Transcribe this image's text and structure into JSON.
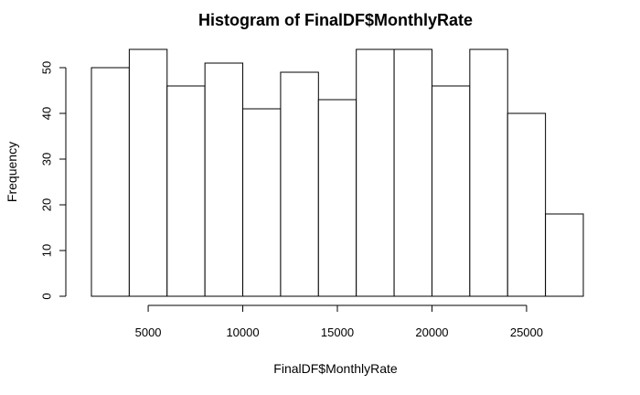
{
  "chart_data": {
    "type": "bar",
    "title": "Histogram of FinalDF$MonthlyRate",
    "xlabel": "FinalDF$MonthlyRate",
    "ylabel": "Frequency",
    "bins": [
      {
        "from": 2000,
        "to": 4000,
        "count": 50
      },
      {
        "from": 4000,
        "to": 6000,
        "count": 54
      },
      {
        "from": 6000,
        "to": 8000,
        "count": 46
      },
      {
        "from": 8000,
        "to": 10000,
        "count": 51
      },
      {
        "from": 10000,
        "to": 12000,
        "count": 41
      },
      {
        "from": 12000,
        "to": 14000,
        "count": 49
      },
      {
        "from": 14000,
        "to": 16000,
        "count": 43
      },
      {
        "from": 16000,
        "to": 18000,
        "count": 54
      },
      {
        "from": 18000,
        "to": 20000,
        "count": 54
      },
      {
        "from": 20000,
        "to": 22000,
        "count": 46
      },
      {
        "from": 22000,
        "to": 24000,
        "count": 54
      },
      {
        "from": 24000,
        "to": 26000,
        "count": 40
      },
      {
        "from": 26000,
        "to": 28000,
        "count": 18
      }
    ],
    "xlim": [
      2000,
      28000
    ],
    "ylim": [
      0,
      54
    ],
    "xticks": [
      5000,
      10000,
      15000,
      20000,
      25000
    ],
    "yticks": [
      0,
      10,
      20,
      30,
      40,
      50
    ],
    "bar_fill": "#ffffff",
    "bar_stroke": "#000000",
    "grid": false
  }
}
